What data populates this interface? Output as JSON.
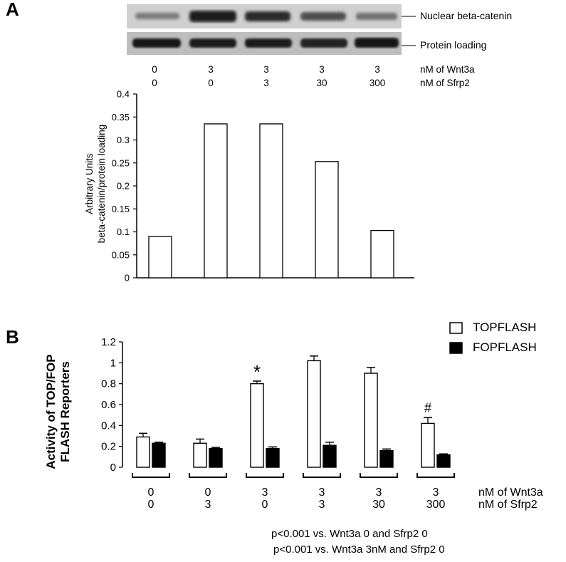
{
  "panel_a": {
    "letter": "A",
    "blot_labels": [
      "Nuclear beta-catenin",
      "Protein loading"
    ],
    "conditions": {
      "wnt3a": [
        "0",
        "3",
        "3",
        "3",
        "3"
      ],
      "sfrp2": [
        "0",
        "0",
        "3",
        "30",
        "300"
      ],
      "wnt3a_label": "nM of Wnt3a",
      "sfrp2_label": "nM of Sfrp2"
    },
    "ylabel_line1": "Arbitrary Units",
    "ylabel_line2": "beta-catenin/protein loading"
  },
  "panel_b": {
    "letter": "B",
    "ylabel_line1": "Activity of TOP/FOP",
    "ylabel_line2": "FLASH Reporters",
    "legend": [
      "TOPFLASH",
      "FOPFLASH"
    ],
    "conditions": {
      "wnt3a": [
        "0",
        "0",
        "3",
        "3",
        "3",
        "3"
      ],
      "sfrp2": [
        "0",
        "3",
        "0",
        "3",
        "30",
        "300"
      ],
      "wnt3a_label": "nM of  Wnt3a",
      "sfrp2_label": "nM of  Sfrp2"
    },
    "footnotes": [
      "p<0.001 vs. Wnt3a 0 and Sfrp2 0",
      "p<0.001 vs. Wnt3a 3nM and Sfrp2 0"
    ]
  },
  "chart_data": [
    {
      "type": "bar",
      "categories": [
        "0/0",
        "3/0",
        "3/3",
        "3/30",
        "3/300"
      ],
      "values": [
        0.09,
        0.335,
        0.335,
        0.253,
        0.103
      ],
      "ylim": [
        0,
        0.4
      ],
      "yticks": [
        "0",
        "0.05",
        "0.1",
        "0.15",
        "0.2",
        "0.25",
        "0.3",
        "0.35",
        "0.4"
      ],
      "ylabel": "Arbitrary Units beta-catenin/protein loading"
    },
    {
      "type": "bar",
      "categories": [
        "0/0",
        "0/3",
        "3/0",
        "3/3",
        "3/30",
        "3/300"
      ],
      "series": [
        {
          "name": "TOPFLASH",
          "values": [
            0.29,
            0.23,
            0.8,
            1.02,
            0.9,
            0.42
          ],
          "errors": [
            0.035,
            0.04,
            0.025,
            0.045,
            0.055,
            0.055
          ],
          "color": "#ffffff"
        },
        {
          "name": "FOPFLASH",
          "values": [
            0.23,
            0.18,
            0.18,
            0.21,
            0.16,
            0.12
          ],
          "errors": [
            0.01,
            0.01,
            0.015,
            0.03,
            0.015,
            0.008
          ],
          "color": "#000000"
        }
      ],
      "annotations": [
        {
          "category": 2,
          "text": "*"
        },
        {
          "category": 5,
          "text": "#"
        }
      ],
      "ylim": [
        0,
        1.2
      ],
      "yticks": [
        "0",
        "0.2",
        "0.4",
        "0.6",
        "0.8",
        "1",
        "1.2"
      ],
      "ylabel": "Activity of TOP/FOP FLASH Reporters"
    }
  ]
}
